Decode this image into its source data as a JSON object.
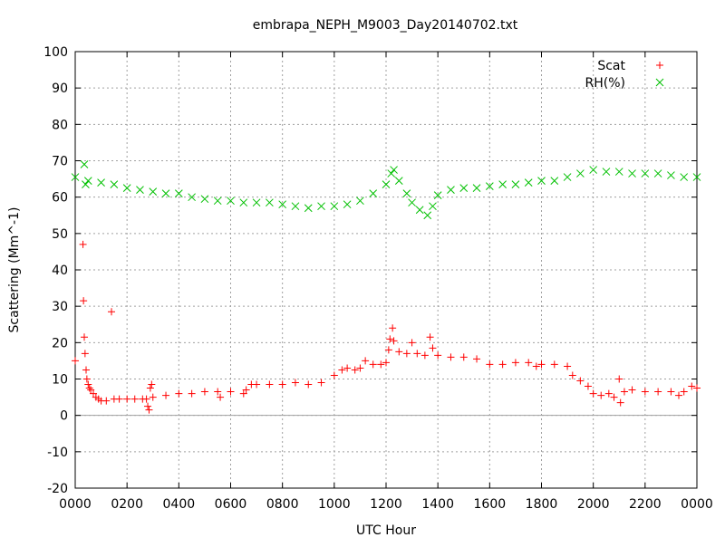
{
  "chart_data": {
    "type": "scatter",
    "title": "embrapa_NEPH_M9003_Day20140702.txt",
    "xlabel": "UTC Hour",
    "ylabel": "Scattering (Mm^-1)",
    "xlim": [
      0,
      24
    ],
    "ylim": [
      -20,
      100
    ],
    "x_ticks": [
      0,
      2,
      4,
      6,
      8,
      10,
      12,
      14,
      16,
      18,
      20,
      22,
      24
    ],
    "x_tick_labels": [
      "0000",
      "0200",
      "0400",
      "0600",
      "0800",
      "1000",
      "1200",
      "1400",
      "1600",
      "1800",
      "2000",
      "2200",
      "0000"
    ],
    "y_ticks": [
      -20,
      -10,
      0,
      10,
      20,
      30,
      40,
      50,
      60,
      70,
      80,
      90,
      100
    ],
    "y_tick_labels": [
      "-20",
      "-10",
      "0",
      "10",
      "20",
      "30",
      "40",
      "50",
      "60",
      "70",
      "80",
      "90",
      "100"
    ],
    "grid": true,
    "zero_line": true,
    "legend_position": "top-right",
    "series": [
      {
        "name": "Scat",
        "marker": "+",
        "color": "#ff0000",
        "points": [
          [
            0.0,
            15.0
          ],
          [
            0.3,
            47.0
          ],
          [
            0.32,
            31.5
          ],
          [
            0.35,
            21.5
          ],
          [
            0.38,
            17.0
          ],
          [
            0.42,
            12.5
          ],
          [
            0.45,
            10.0
          ],
          [
            0.5,
            8.5
          ],
          [
            0.55,
            7.5
          ],
          [
            0.6,
            7.0
          ],
          [
            0.7,
            6.0
          ],
          [
            0.8,
            5.0
          ],
          [
            0.9,
            4.5
          ],
          [
            1.0,
            4.0
          ],
          [
            1.2,
            4.0
          ],
          [
            1.4,
            28.5
          ],
          [
            1.5,
            4.5
          ],
          [
            1.7,
            4.5
          ],
          [
            2.0,
            4.5
          ],
          [
            2.3,
            4.5
          ],
          [
            2.6,
            4.5
          ],
          [
            2.75,
            4.5
          ],
          [
            2.8,
            2.5
          ],
          [
            2.85,
            1.5
          ],
          [
            2.9,
            7.5
          ],
          [
            2.95,
            8.5
          ],
          [
            3.0,
            5.0
          ],
          [
            3.5,
            5.5
          ],
          [
            4.0,
            6.0
          ],
          [
            4.5,
            6.0
          ],
          [
            5.0,
            6.5
          ],
          [
            5.5,
            6.5
          ],
          [
            5.6,
            5.0
          ],
          [
            6.0,
            6.5
          ],
          [
            6.5,
            6.0
          ],
          [
            6.6,
            7.0
          ],
          [
            6.8,
            8.5
          ],
          [
            7.0,
            8.5
          ],
          [
            7.5,
            8.5
          ],
          [
            8.0,
            8.5
          ],
          [
            8.5,
            9.0
          ],
          [
            9.0,
            8.5
          ],
          [
            9.5,
            9.0
          ],
          [
            10.0,
            11.0
          ],
          [
            10.3,
            12.5
          ],
          [
            10.5,
            13.0
          ],
          [
            10.8,
            12.5
          ],
          [
            11.0,
            13.0
          ],
          [
            11.2,
            15.0
          ],
          [
            11.5,
            14.0
          ],
          [
            11.8,
            14.0
          ],
          [
            12.0,
            14.5
          ],
          [
            12.1,
            18.0
          ],
          [
            12.15,
            21.0
          ],
          [
            12.25,
            24.0
          ],
          [
            12.3,
            20.5
          ],
          [
            12.5,
            17.5
          ],
          [
            12.8,
            17.0
          ],
          [
            13.0,
            20.0
          ],
          [
            13.2,
            17.0
          ],
          [
            13.5,
            16.5
          ],
          [
            13.7,
            21.5
          ],
          [
            13.8,
            18.5
          ],
          [
            14.0,
            16.5
          ],
          [
            14.5,
            16.0
          ],
          [
            15.0,
            16.0
          ],
          [
            15.5,
            15.5
          ],
          [
            16.0,
            14.0
          ],
          [
            16.5,
            14.0
          ],
          [
            17.0,
            14.5
          ],
          [
            17.5,
            14.5
          ],
          [
            17.8,
            13.5
          ],
          [
            18.0,
            14.0
          ],
          [
            18.5,
            14.0
          ],
          [
            19.0,
            13.5
          ],
          [
            19.2,
            11.0
          ],
          [
            19.5,
            9.5
          ],
          [
            19.8,
            8.0
          ],
          [
            20.0,
            6.0
          ],
          [
            20.3,
            5.5
          ],
          [
            20.6,
            6.0
          ],
          [
            20.8,
            5.0
          ],
          [
            21.0,
            10.0
          ],
          [
            21.05,
            3.5
          ],
          [
            21.2,
            6.5
          ],
          [
            21.5,
            7.0
          ],
          [
            22.0,
            6.5
          ],
          [
            22.5,
            6.5
          ],
          [
            23.0,
            6.5
          ],
          [
            23.3,
            5.5
          ],
          [
            23.5,
            6.5
          ],
          [
            23.8,
            8.0
          ],
          [
            24.0,
            7.5
          ]
        ]
      },
      {
        "name": "RH(%)",
        "marker": "x",
        "color": "#00c000",
        "points": [
          [
            0.0,
            65.5
          ],
          [
            0.35,
            69.0
          ],
          [
            0.4,
            63.5
          ],
          [
            0.5,
            64.5
          ],
          [
            1.0,
            64.0
          ],
          [
            1.5,
            63.5
          ],
          [
            2.0,
            62.5
          ],
          [
            2.5,
            62.0
          ],
          [
            3.0,
            61.5
          ],
          [
            3.5,
            61.0
          ],
          [
            4.0,
            61.0
          ],
          [
            4.5,
            60.0
          ],
          [
            5.0,
            59.5
          ],
          [
            5.5,
            59.0
          ],
          [
            6.0,
            59.0
          ],
          [
            6.5,
            58.5
          ],
          [
            7.0,
            58.5
          ],
          [
            7.5,
            58.5
          ],
          [
            8.0,
            58.0
          ],
          [
            8.5,
            57.5
          ],
          [
            9.0,
            57.0
          ],
          [
            9.5,
            57.5
          ],
          [
            10.0,
            57.5
          ],
          [
            10.5,
            58.0
          ],
          [
            11.0,
            59.0
          ],
          [
            11.5,
            61.0
          ],
          [
            12.0,
            63.5
          ],
          [
            12.2,
            66.5
          ],
          [
            12.3,
            67.5
          ],
          [
            12.5,
            64.5
          ],
          [
            12.8,
            61.0
          ],
          [
            13.0,
            58.5
          ],
          [
            13.3,
            56.5
          ],
          [
            13.6,
            55.0
          ],
          [
            13.8,
            57.5
          ],
          [
            14.0,
            60.5
          ],
          [
            14.5,
            62.0
          ],
          [
            15.0,
            62.5
          ],
          [
            15.5,
            62.5
          ],
          [
            16.0,
            63.0
          ],
          [
            16.5,
            63.5
          ],
          [
            17.0,
            63.5
          ],
          [
            17.5,
            64.0
          ],
          [
            18.0,
            64.5
          ],
          [
            18.5,
            64.5
          ],
          [
            19.0,
            65.5
          ],
          [
            19.5,
            66.5
          ],
          [
            20.0,
            67.5
          ],
          [
            20.5,
            67.0
          ],
          [
            21.0,
            67.0
          ],
          [
            21.5,
            66.5
          ],
          [
            22.0,
            66.5
          ],
          [
            22.5,
            66.5
          ],
          [
            23.0,
            66.0
          ],
          [
            23.5,
            65.5
          ],
          [
            24.0,
            65.5
          ]
        ]
      }
    ]
  }
}
